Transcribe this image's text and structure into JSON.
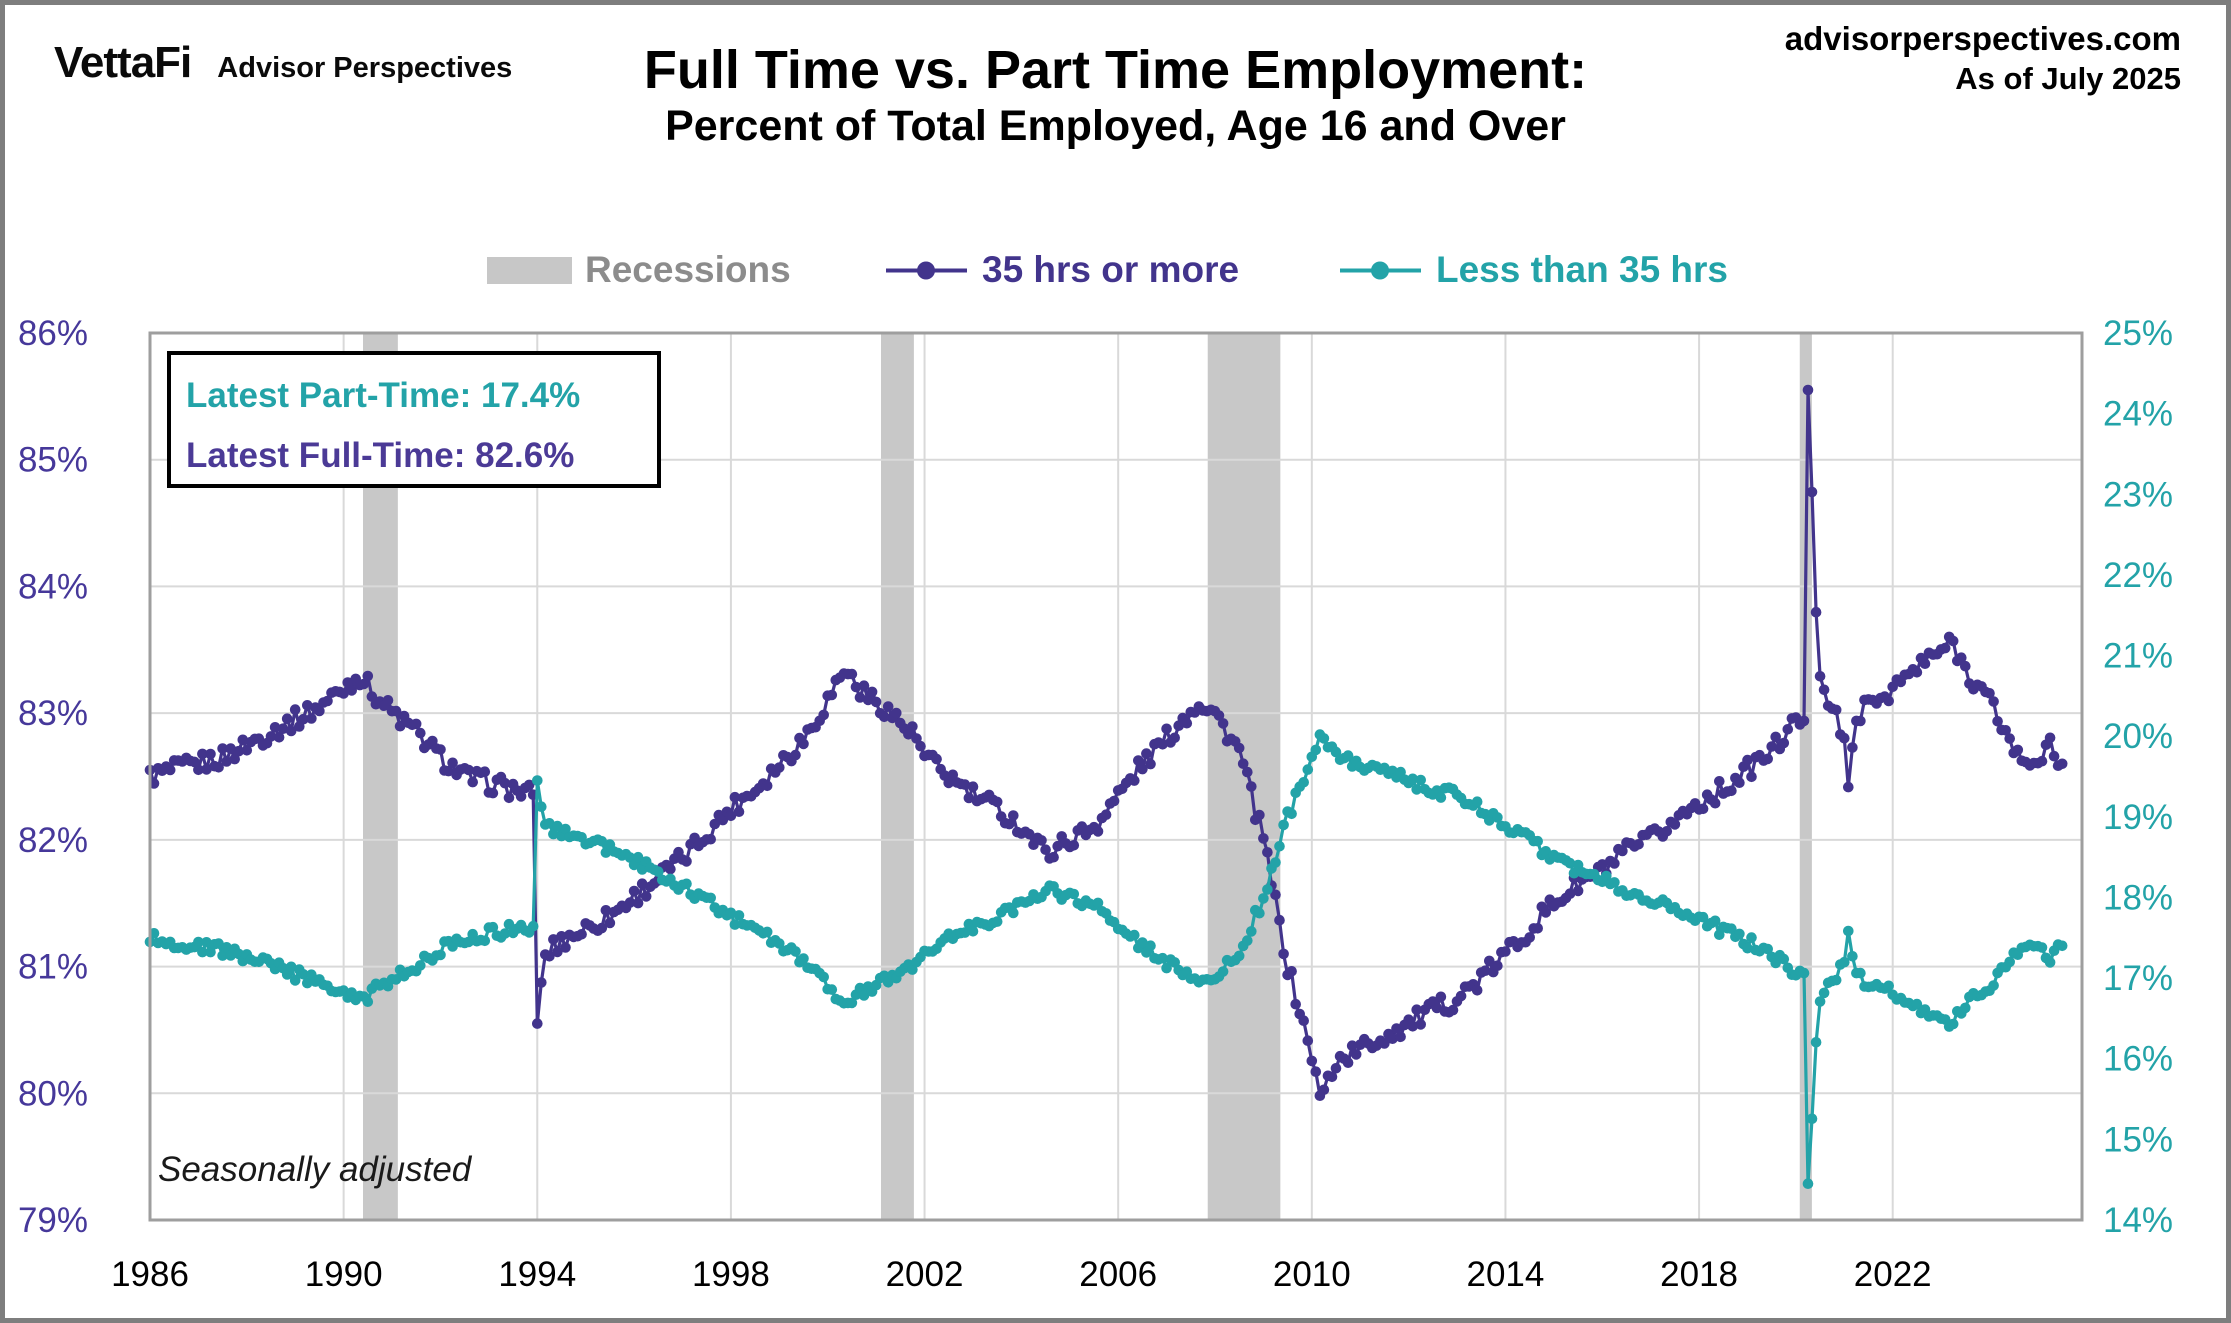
{
  "header": {
    "logo_primary": "VettaFi",
    "logo_secondary": "Advisor Perspectives",
    "source_line1": "advisorperspectives.com",
    "source_line2": "As of July 2025"
  },
  "title": "Full Time vs. Part Time Employment:",
  "subtitle": "Percent of Total Employed, Age 16 and Over",
  "legend": {
    "recessions": "Recessions",
    "full_time": "35 hrs or more",
    "part_time": "Less than 35 hrs"
  },
  "annotation": {
    "part_time": "Latest Part-Time: 17.4%",
    "full_time": "Latest Full-Time: 82.6%"
  },
  "footnote": "Seasonally adjusted",
  "colors": {
    "full_time_series": "#42348C",
    "part_time_series": "#23A3A8",
    "left_axis_labels": "#46389A",
    "right_axis_labels": "#23A3A8",
    "x_axis_labels": "#000000",
    "recession_band": "#C8C8C8",
    "gridline": "#D9D9D9",
    "plot_border": "#9E9E9E",
    "legend_gray": "#8C8C8C"
  },
  "chart_data": {
    "type": "line",
    "title": "Full Time vs. Part Time Employment:",
    "subtitle": "Percent of Total Employed, Age 16 and Over",
    "frequency": "monthly",
    "date_range": [
      "1986-01",
      "2025-07"
    ],
    "seasonally_adjusted": true,
    "grid": true,
    "legend_position": "top",
    "x_axis": {
      "range": [
        1986,
        2025.91
      ],
      "tick_years": [
        1986,
        1990,
        1994,
        1998,
        2002,
        2006,
        2010,
        2014,
        2018,
        2022
      ]
    },
    "left_axis": {
      "series": "35 hrs or more",
      "range": [
        79,
        86
      ],
      "ticks": [
        "86%",
        "85%",
        "84%",
        "83%",
        "82%",
        "81%",
        "80%",
        "79%"
      ],
      "tick_values": [
        86,
        85,
        84,
        83,
        82,
        81,
        80,
        79
      ]
    },
    "right_axis": {
      "series": "Less than 35 hrs",
      "range": [
        14,
        25
      ],
      "ticks": [
        "25%",
        "24%",
        "23%",
        "22%",
        "21%",
        "20%",
        "19%",
        "18%",
        "17%",
        "16%",
        "15%",
        "14%"
      ],
      "tick_values": [
        25,
        24,
        23,
        22,
        21,
        20,
        19,
        18,
        17,
        16,
        15,
        14
      ]
    },
    "recessions": [
      [
        1990.4,
        1991.12
      ],
      [
        2001.1,
        2001.78
      ],
      [
        2007.85,
        2009.35
      ],
      [
        2020.08,
        2020.33
      ]
    ],
    "latest": {
      "part_time_pct": 17.4,
      "full_time_pct": 82.6
    },
    "monthly_noise": 0.08,
    "series": [
      {
        "name": "35 hrs or more",
        "axis": "left",
        "color": "#42348C",
        "anchors": [
          [
            1986.0,
            82.5
          ],
          [
            1986.5,
            82.55
          ],
          [
            1987.0,
            82.6
          ],
          [
            1987.5,
            82.65
          ],
          [
            1988.0,
            82.75
          ],
          [
            1988.5,
            82.85
          ],
          [
            1989.0,
            82.95
          ],
          [
            1989.5,
            83.05
          ],
          [
            1990.0,
            83.2
          ],
          [
            1990.33,
            83.3
          ],
          [
            1990.75,
            83.1
          ],
          [
            1991.17,
            82.95
          ],
          [
            1991.5,
            82.85
          ],
          [
            1992.0,
            82.65
          ],
          [
            1992.5,
            82.5
          ],
          [
            1993.0,
            82.45
          ],
          [
            1993.5,
            82.4
          ],
          [
            1993.92,
            82.35
          ],
          [
            1994.0,
            80.55
          ],
          [
            1994.08,
            80.85
          ],
          [
            1994.17,
            81.1
          ],
          [
            1994.5,
            81.2
          ],
          [
            1995.0,
            81.3
          ],
          [
            1995.5,
            81.4
          ],
          [
            1996.0,
            81.55
          ],
          [
            1996.5,
            81.7
          ],
          [
            1997.0,
            81.85
          ],
          [
            1997.5,
            82.05
          ],
          [
            1998.0,
            82.25
          ],
          [
            1998.5,
            82.4
          ],
          [
            1999.0,
            82.6
          ],
          [
            1999.5,
            82.8
          ],
          [
            2000.0,
            83.1
          ],
          [
            2000.33,
            83.35
          ],
          [
            2000.75,
            83.15
          ],
          [
            2001.17,
            83.05
          ],
          [
            2001.83,
            82.8
          ],
          [
            2002.0,
            82.65
          ],
          [
            2002.5,
            82.5
          ],
          [
            2003.0,
            82.35
          ],
          [
            2003.5,
            82.25
          ],
          [
            2004.0,
            82.1
          ],
          [
            2004.5,
            81.9
          ],
          [
            2005.0,
            82.0
          ],
          [
            2005.5,
            82.1
          ],
          [
            2006.0,
            82.35
          ],
          [
            2006.5,
            82.6
          ],
          [
            2007.0,
            82.8
          ],
          [
            2007.67,
            83.1
          ],
          [
            2008.0,
            83.0
          ],
          [
            2008.5,
            82.7
          ],
          [
            2009.0,
            82.0
          ],
          [
            2009.5,
            81.0
          ],
          [
            2010.0,
            80.3
          ],
          [
            2010.17,
            79.95
          ],
          [
            2010.5,
            80.25
          ],
          [
            2011.0,
            80.35
          ],
          [
            2011.5,
            80.45
          ],
          [
            2012.0,
            80.55
          ],
          [
            2012.5,
            80.65
          ],
          [
            2013.0,
            80.75
          ],
          [
            2013.5,
            80.9
          ],
          [
            2014.0,
            81.1
          ],
          [
            2014.5,
            81.3
          ],
          [
            2015.0,
            81.5
          ],
          [
            2015.5,
            81.65
          ],
          [
            2016.0,
            81.75
          ],
          [
            2016.5,
            81.9
          ],
          [
            2017.0,
            82.0
          ],
          [
            2017.5,
            82.15
          ],
          [
            2018.0,
            82.3
          ],
          [
            2018.5,
            82.4
          ],
          [
            2019.0,
            82.55
          ],
          [
            2019.5,
            82.7
          ],
          [
            2019.92,
            82.9
          ],
          [
            2020.17,
            82.95
          ],
          [
            2020.25,
            85.55
          ],
          [
            2020.33,
            84.8
          ],
          [
            2020.42,
            83.8
          ],
          [
            2020.5,
            83.35
          ],
          [
            2020.67,
            83.1
          ],
          [
            2021.0,
            82.8
          ],
          [
            2021.08,
            82.35
          ],
          [
            2021.25,
            83.0
          ],
          [
            2021.5,
            83.05
          ],
          [
            2022.0,
            83.2
          ],
          [
            2022.5,
            83.35
          ],
          [
            2023.0,
            83.5
          ],
          [
            2023.25,
            83.55
          ],
          [
            2023.5,
            83.35
          ],
          [
            2024.0,
            83.1
          ],
          [
            2024.33,
            82.85
          ],
          [
            2024.67,
            82.6
          ],
          [
            2025.0,
            82.65
          ],
          [
            2025.25,
            82.75
          ],
          [
            2025.42,
            82.55
          ],
          [
            2025.5,
            82.6
          ]
        ]
      },
      {
        "name": "Less than 35 hrs",
        "axis": "right",
        "color": "#23A3A8",
        "anchors": [
          [
            1986.0,
            17.5
          ],
          [
            1986.5,
            17.45
          ],
          [
            1987.0,
            17.4
          ],
          [
            1987.5,
            17.35
          ],
          [
            1988.0,
            17.25
          ],
          [
            1988.5,
            17.15
          ],
          [
            1989.0,
            17.05
          ],
          [
            1989.5,
            16.95
          ],
          [
            1990.0,
            16.8
          ],
          [
            1990.33,
            16.7
          ],
          [
            1990.75,
            16.9
          ],
          [
            1991.17,
            17.05
          ],
          [
            1991.5,
            17.15
          ],
          [
            1992.0,
            17.35
          ],
          [
            1992.5,
            17.5
          ],
          [
            1993.0,
            17.55
          ],
          [
            1993.5,
            17.6
          ],
          [
            1993.92,
            17.65
          ],
          [
            1994.0,
            19.45
          ],
          [
            1994.08,
            19.15
          ],
          [
            1994.17,
            18.9
          ],
          [
            1994.5,
            18.8
          ],
          [
            1995.0,
            18.7
          ],
          [
            1995.5,
            18.6
          ],
          [
            1996.0,
            18.45
          ],
          [
            1996.5,
            18.3
          ],
          [
            1997.0,
            18.15
          ],
          [
            1997.5,
            17.95
          ],
          [
            1998.0,
            17.75
          ],
          [
            1998.5,
            17.6
          ],
          [
            1999.0,
            17.4
          ],
          [
            1999.5,
            17.2
          ],
          [
            2000.0,
            16.9
          ],
          [
            2000.33,
            16.65
          ],
          [
            2000.75,
            16.85
          ],
          [
            2001.17,
            16.95
          ],
          [
            2001.83,
            17.2
          ],
          [
            2002.0,
            17.35
          ],
          [
            2002.5,
            17.5
          ],
          [
            2003.0,
            17.65
          ],
          [
            2003.5,
            17.75
          ],
          [
            2004.0,
            17.9
          ],
          [
            2004.5,
            18.1
          ],
          [
            2005.0,
            18.0
          ],
          [
            2005.5,
            17.9
          ],
          [
            2006.0,
            17.65
          ],
          [
            2006.5,
            17.4
          ],
          [
            2007.0,
            17.2
          ],
          [
            2007.67,
            16.9
          ],
          [
            2008.0,
            17.0
          ],
          [
            2008.5,
            17.3
          ],
          [
            2009.0,
            18.0
          ],
          [
            2009.5,
            19.0
          ],
          [
            2010.0,
            19.7
          ],
          [
            2010.17,
            20.05
          ],
          [
            2010.5,
            19.75
          ],
          [
            2011.0,
            19.65
          ],
          [
            2011.5,
            19.55
          ],
          [
            2012.0,
            19.45
          ],
          [
            2012.5,
            19.35
          ],
          [
            2013.0,
            19.25
          ],
          [
            2013.5,
            19.1
          ],
          [
            2014.0,
            18.9
          ],
          [
            2014.5,
            18.7
          ],
          [
            2015.0,
            18.5
          ],
          [
            2015.5,
            18.35
          ],
          [
            2016.0,
            18.25
          ],
          [
            2016.5,
            18.1
          ],
          [
            2017.0,
            18.0
          ],
          [
            2017.5,
            17.85
          ],
          [
            2018.0,
            17.7
          ],
          [
            2018.5,
            17.6
          ],
          [
            2019.0,
            17.45
          ],
          [
            2019.5,
            17.3
          ],
          [
            2019.92,
            17.1
          ],
          [
            2020.17,
            17.05
          ],
          [
            2020.25,
            14.45
          ],
          [
            2020.33,
            15.2
          ],
          [
            2020.42,
            16.2
          ],
          [
            2020.5,
            16.65
          ],
          [
            2020.67,
            16.9
          ],
          [
            2021.0,
            17.2
          ],
          [
            2021.08,
            17.65
          ],
          [
            2021.25,
            17.0
          ],
          [
            2021.5,
            16.95
          ],
          [
            2022.0,
            16.8
          ],
          [
            2022.5,
            16.65
          ],
          [
            2023.0,
            16.5
          ],
          [
            2023.25,
            16.45
          ],
          [
            2023.5,
            16.65
          ],
          [
            2024.0,
            16.9
          ],
          [
            2024.33,
            17.15
          ],
          [
            2024.67,
            17.4
          ],
          [
            2025.0,
            17.35
          ],
          [
            2025.25,
            17.25
          ],
          [
            2025.42,
            17.45
          ],
          [
            2025.5,
            17.4
          ]
        ]
      }
    ]
  }
}
